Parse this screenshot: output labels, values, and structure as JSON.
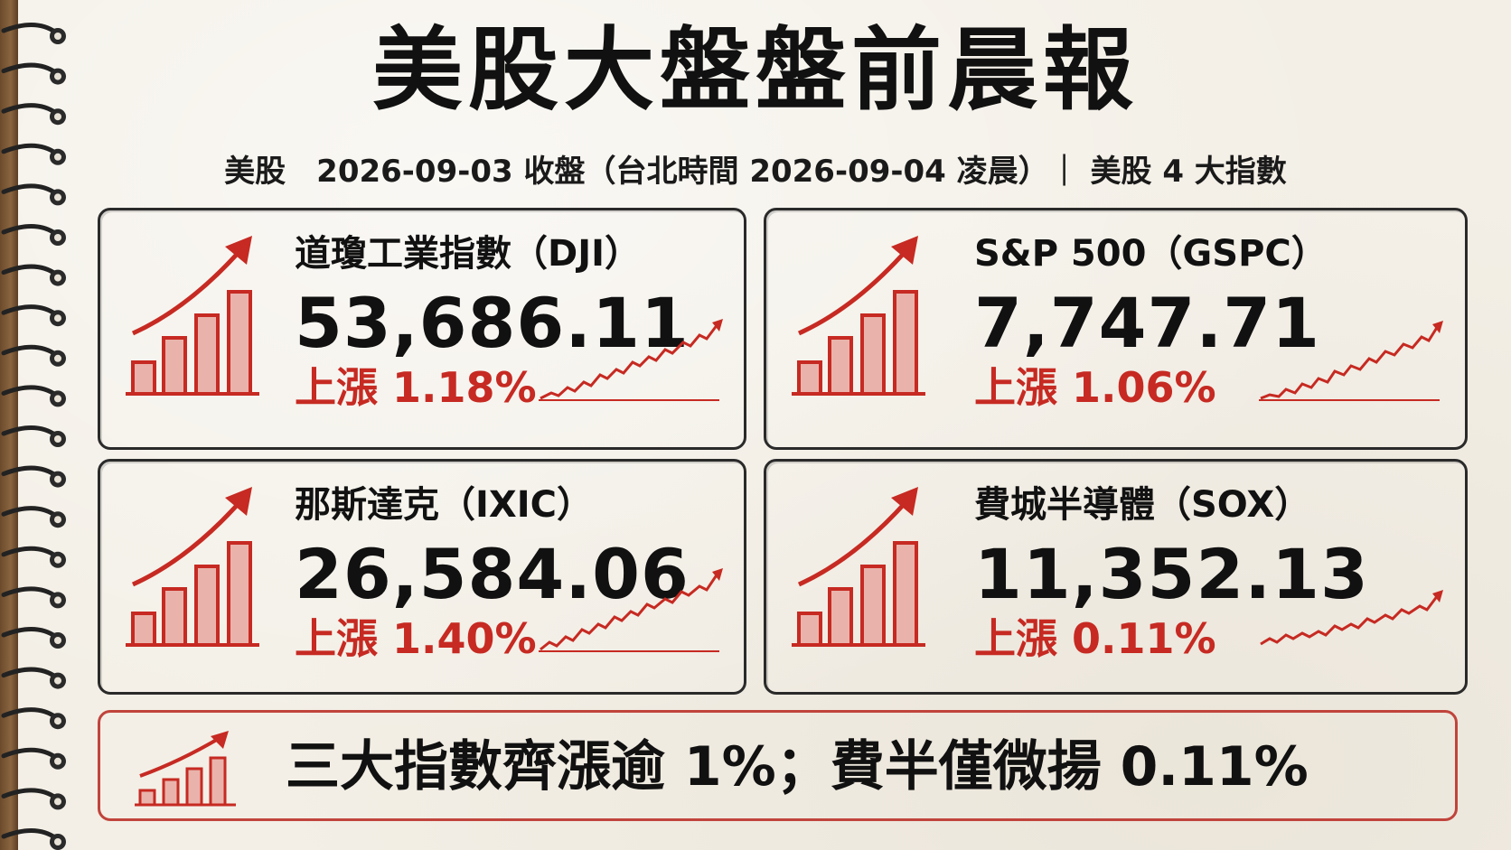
{
  "title": "美股大盤盤前晨報",
  "subtitle": "美股　2026-09-03 收盤（台北時間 2026-09-04 凌晨）｜ 美股 4 大指數",
  "cards": [
    {
      "name": "道瓊工業指數（DJI）",
      "value": "53,686.11",
      "change": "上漲 1.18%"
    },
    {
      "name": "S&P 500（GSPC）",
      "value": "7,747.71",
      "change": "上漲 1.06%"
    },
    {
      "name": "那斯達克（IXIC）",
      "value": "26,584.06",
      "change": "上漲 1.40%"
    },
    {
      "name": "費城半導體（SOX）",
      "value": "11,352.13",
      "change": "上漲 0.11%"
    }
  ],
  "summary": "三大指數齊漲逾 1%；費半僅微揚 0.11%",
  "colors": {
    "accent_red": "#c62a22",
    "ink": "#111111",
    "paper": "#f3efe6"
  }
}
